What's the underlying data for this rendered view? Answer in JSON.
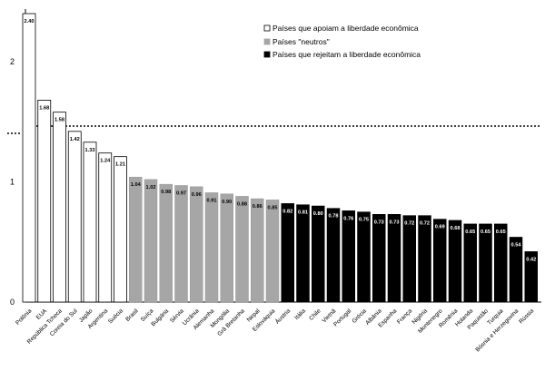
{
  "chart_data": {
    "type": "bar",
    "title": "",
    "xlabel": "",
    "ylabel": "",
    "ylim": [
      0,
      2.5
    ],
    "yticks": [
      "0",
      "1",
      "2"
    ],
    "grid": false,
    "legend_position": "top-right",
    "reference_line": {
      "value": 1.46,
      "style": "dotted"
    },
    "groups": [
      {
        "name": "Países que apoiam a liberdade econômica",
        "color": "#ffffff"
      },
      {
        "name": "Países \"neutros\"",
        "color": "#a6a6a6"
      },
      {
        "name": "Países que rejeitam a liberdade econômica",
        "color": "#000000"
      }
    ],
    "categories": [
      "Polônia",
      "EUA",
      "República Tcheca",
      "Coreia do Sul",
      "Japão",
      "Argentina",
      "Suécia",
      "Brasil",
      "Suíça",
      "Bulgária",
      "Sérvia",
      "Ucrânia",
      "Alemanha",
      "Mongólia",
      "Grã Bretanha",
      "Nepal",
      "Eslováquia",
      "Áustria",
      "Itália",
      "Chile",
      "Vietnã",
      "Portugal",
      "Grécia",
      "Albânia",
      "Espanha",
      "França",
      "Nigéria",
      "Montenegro",
      "Romênia",
      "Holanda",
      "Paquistão",
      "Turquia",
      "Bósnia e Herzegovina",
      "Rússia"
    ],
    "values": [
      2.4,
      1.68,
      1.58,
      1.42,
      1.33,
      1.24,
      1.21,
      1.04,
      1.02,
      0.98,
      0.97,
      0.96,
      0.91,
      0.9,
      0.88,
      0.86,
      0.85,
      0.82,
      0.81,
      0.8,
      0.78,
      0.76,
      0.75,
      0.73,
      0.73,
      0.72,
      0.72,
      0.69,
      0.68,
      0.65,
      0.65,
      0.65,
      0.54,
      0.42
    ],
    "value_labels": [
      "2.40",
      "1.68",
      "1.58",
      "1.42",
      "1.33",
      "1.24",
      "1.21",
      "1.04",
      "1.02",
      "0.98",
      "0.97",
      "0.96",
      "0.91",
      "0.90",
      "0.88",
      "0.86",
      "0.85",
      "0.82",
      "0.81",
      "0.80",
      "0.78",
      "0.76",
      "0.75",
      "0.73",
      "0.73",
      "0.72",
      "0.72",
      "0.69",
      "0.68",
      "0.65",
      "0.65",
      "0.65",
      "0.54",
      "0.42"
    ],
    "group_index": [
      0,
      0,
      0,
      0,
      0,
      0,
      0,
      1,
      1,
      1,
      1,
      1,
      1,
      1,
      1,
      1,
      1,
      2,
      2,
      2,
      2,
      2,
      2,
      2,
      2,
      2,
      2,
      2,
      2,
      2,
      2,
      2,
      2,
      2
    ]
  }
}
